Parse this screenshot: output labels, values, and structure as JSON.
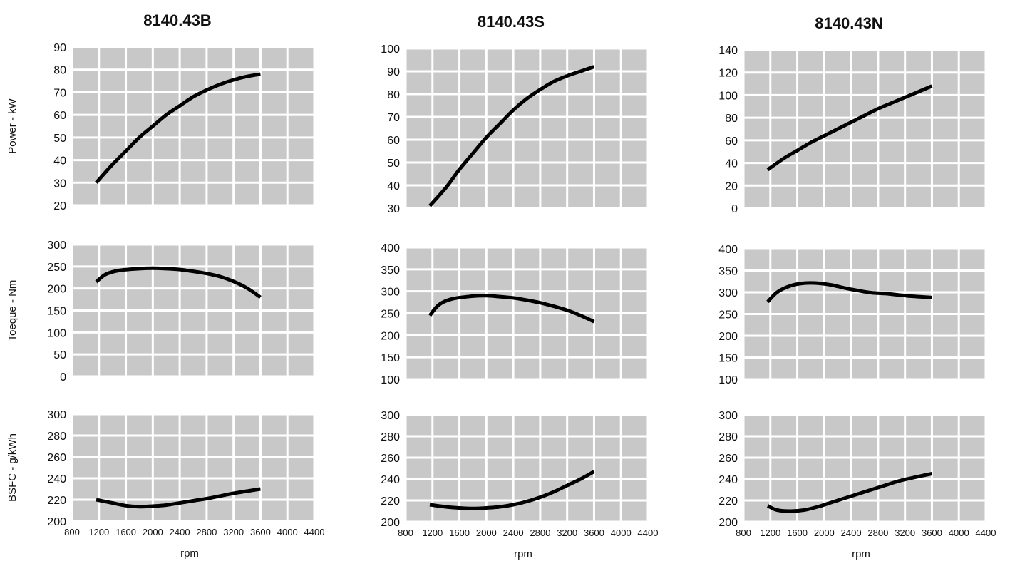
{
  "colors": {
    "plot_bg": "#c8c8c8",
    "grid": "#ffffff",
    "line": "#000000"
  },
  "chart_data": [
    {
      "type": "line",
      "title": "8140.43B",
      "ylabel": "Power - kW",
      "xlabel": "",
      "xlim": [
        800,
        4400
      ],
      "ylim": [
        20,
        90
      ],
      "yticks": [
        "20",
        "30",
        "40",
        "50",
        "60",
        "70",
        "80",
        "90"
      ],
      "x": [
        1160,
        1400,
        1600,
        1800,
        2000,
        2200,
        2400,
        2600,
        2800,
        3000,
        3200,
        3400,
        3600
      ],
      "y": [
        30,
        38,
        44,
        50,
        55,
        60,
        64,
        68,
        71,
        73.5,
        75.5,
        77,
        78
      ]
    },
    {
      "type": "line",
      "title": "8140.43S",
      "ylabel": "",
      "xlabel": "",
      "xlim": [
        800,
        4400
      ],
      "ylim": [
        30,
        100
      ],
      "yticks": [
        "30",
        "40",
        "50",
        "60",
        "70",
        "80",
        "90",
        "100"
      ],
      "x": [
        1160,
        1400,
        1600,
        1800,
        2000,
        2200,
        2400,
        2600,
        2800,
        3000,
        3200,
        3400,
        3600
      ],
      "y": [
        31,
        39,
        47,
        54,
        61,
        67,
        73,
        78,
        82,
        85.5,
        88,
        90,
        92
      ]
    },
    {
      "type": "line",
      "title": "8140.43N",
      "ylabel": "",
      "xlabel": "",
      "xlim": [
        800,
        4400
      ],
      "ylim": [
        0,
        140
      ],
      "yticks": [
        "0",
        "20",
        "40",
        "60",
        "80",
        "100",
        "120",
        "140"
      ],
      "x": [
        1160,
        1400,
        1600,
        1800,
        2000,
        2200,
        2400,
        2600,
        2800,
        3000,
        3200,
        3400,
        3600
      ],
      "y": [
        34,
        44,
        51,
        58,
        64,
        70,
        76,
        82,
        88,
        93,
        98,
        103,
        108
      ]
    },
    {
      "type": "line",
      "title": "",
      "ylabel": "Toeque - Nm",
      "xlabel": "",
      "xlim": [
        800,
        4400
      ],
      "ylim": [
        0,
        300
      ],
      "yticks": [
        "0",
        "50",
        "100",
        "150",
        "200",
        "250",
        "300"
      ],
      "x": [
        1160,
        1300,
        1500,
        1800,
        2000,
        2200,
        2400,
        2600,
        2800,
        3000,
        3200,
        3400,
        3600
      ],
      "y": [
        215,
        232,
        241,
        245,
        246,
        245,
        243,
        239,
        234,
        227,
        216,
        201,
        180
      ]
    },
    {
      "type": "line",
      "title": "",
      "ylabel": "",
      "xlabel": "",
      "xlim": [
        800,
        4400
      ],
      "ylim": [
        100,
        400
      ],
      "yticks": [
        "100",
        "150",
        "200",
        "250",
        "300",
        "350",
        "400"
      ],
      "x": [
        1160,
        1300,
        1500,
        1800,
        2000,
        2200,
        2400,
        2600,
        2800,
        3000,
        3200,
        3400,
        3600
      ],
      "y": [
        245,
        270,
        283,
        289,
        290,
        288,
        285,
        280,
        274,
        266,
        257,
        245,
        231
      ]
    },
    {
      "type": "line",
      "title": "",
      "ylabel": "",
      "xlabel": "",
      "xlim": [
        800,
        4400
      ],
      "ylim": [
        100,
        400
      ],
      "yticks": [
        "100",
        "150",
        "200",
        "250",
        "300",
        "350",
        "400"
      ],
      "x": [
        1160,
        1300,
        1500,
        1700,
        1900,
        2100,
        2300,
        2500,
        2700,
        2900,
        3100,
        3300,
        3600
      ],
      "y": [
        278,
        300,
        315,
        321,
        321,
        317,
        310,
        304,
        299,
        297,
        294,
        291,
        288
      ]
    },
    {
      "type": "line",
      "title": "",
      "ylabel": "BSFC - g/kWh",
      "xlabel": "rpm",
      "xlim": [
        800,
        4400
      ],
      "ylim": [
        200,
        300
      ],
      "yticks": [
        "200",
        "220",
        "240",
        "260",
        "280",
        "300"
      ],
      "xticks": [
        "800",
        "1200",
        "1600",
        "2000",
        "2400",
        "2800",
        "3200",
        "3600",
        "4000",
        "4400"
      ],
      "x": [
        1160,
        1400,
        1600,
        1800,
        2000,
        2200,
        2400,
        2600,
        2800,
        3000,
        3200,
        3400,
        3600
      ],
      "y": [
        220,
        217,
        214.5,
        213.5,
        214,
        215,
        217,
        219,
        221,
        223.5,
        226,
        228,
        230
      ]
    },
    {
      "type": "line",
      "title": "",
      "ylabel": "",
      "xlabel": "rpm",
      "xlim": [
        800,
        4400
      ],
      "ylim": [
        200,
        300
      ],
      "yticks": [
        "200",
        "220",
        "240",
        "260",
        "280",
        "300"
      ],
      "xticks": [
        "800",
        "1200",
        "1600",
        "2000",
        "2400",
        "2800",
        "3200",
        "3600",
        "4000",
        "4400"
      ],
      "x": [
        1160,
        1400,
        1600,
        1800,
        2000,
        2200,
        2400,
        2600,
        2800,
        3000,
        3200,
        3400,
        3600
      ],
      "y": [
        216,
        214,
        213,
        212.5,
        213,
        214,
        216,
        219,
        223,
        228,
        234,
        240,
        247
      ]
    },
    {
      "type": "line",
      "title": "",
      "ylabel": "",
      "xlabel": "rpm",
      "xlim": [
        800,
        4400
      ],
      "ylim": [
        200,
        300
      ],
      "yticks": [
        "200",
        "220",
        "240",
        "260",
        "280",
        "300"
      ],
      "xticks": [
        "800",
        "1200",
        "1600",
        "2000",
        "2400",
        "2800",
        "3200",
        "3600",
        "4000",
        "4400"
      ],
      "x": [
        1160,
        1300,
        1500,
        1700,
        1900,
        2100,
        2300,
        2500,
        2700,
        2900,
        3100,
        3300,
        3600
      ],
      "y": [
        215,
        211,
        210,
        211,
        214,
        218,
        222,
        226,
        230,
        234,
        238,
        241,
        245
      ]
    }
  ]
}
